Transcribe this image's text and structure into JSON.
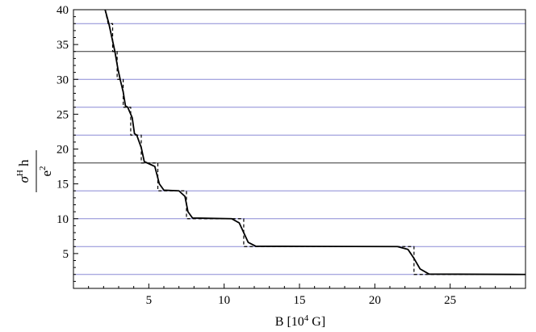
{
  "chart_data": {
    "type": "line",
    "title": "",
    "xlabel": {
      "prefix": "B [10",
      "exponent": "4",
      "suffix": " G]"
    },
    "ylabel": {
      "numerator_main": "σ",
      "numerator_sup": "H",
      "numerator_tail": " h",
      "denominator_main": "e",
      "denominator_sup": "2"
    },
    "xlim": [
      0,
      30
    ],
    "ylim": [
      0,
      40
    ],
    "x_ticks": [
      5,
      10,
      15,
      20,
      25
    ],
    "y_ticks": [
      5,
      10,
      15,
      20,
      25,
      30,
      35,
      40
    ],
    "grid": false,
    "reference_lines": {
      "black": [
        18,
        34
      ],
      "blue": [
        2,
        6,
        10,
        14,
        22,
        26,
        30,
        38
      ]
    },
    "colors": {
      "smooth": "#000000",
      "step": "#000000",
      "black_lines": "#333333",
      "blue_lines": "#8a8ad6",
      "frame": "#000000"
    },
    "series": [
      {
        "style": "step-dashed",
        "points": [
          [
            2.1,
            40
          ],
          [
            2.3,
            38
          ],
          [
            2.6,
            38
          ],
          [
            2.6,
            34
          ],
          [
            2.9,
            34
          ],
          [
            2.9,
            30
          ],
          [
            3.3,
            30
          ],
          [
            3.3,
            26
          ],
          [
            3.8,
            26
          ],
          [
            3.8,
            22
          ],
          [
            4.5,
            22
          ],
          [
            4.5,
            18
          ],
          [
            5.6,
            18
          ],
          [
            5.6,
            14
          ],
          [
            7.5,
            14
          ],
          [
            7.5,
            10
          ],
          [
            11.3,
            10
          ],
          [
            11.3,
            6
          ],
          [
            22.6,
            6
          ],
          [
            22.6,
            2
          ],
          [
            30,
            2
          ]
        ]
      },
      {
        "style": "smooth-solid",
        "points": [
          [
            2.1,
            40
          ],
          [
            2.35,
            38
          ],
          [
            2.55,
            36
          ],
          [
            2.75,
            34
          ],
          [
            2.95,
            31.5
          ],
          [
            3.1,
            30
          ],
          [
            3.3,
            28.2
          ],
          [
            3.45,
            26.2
          ],
          [
            3.6,
            26
          ],
          [
            3.9,
            24.5
          ],
          [
            4.05,
            22.2
          ],
          [
            4.2,
            22
          ],
          [
            4.5,
            20.2
          ],
          [
            4.7,
            18.2
          ],
          [
            4.9,
            18
          ],
          [
            5.4,
            17.5
          ],
          [
            5.7,
            15
          ],
          [
            6.0,
            14.1
          ],
          [
            7.0,
            14
          ],
          [
            7.4,
            13.2
          ],
          [
            7.6,
            11
          ],
          [
            7.9,
            10.1
          ],
          [
            10.5,
            10
          ],
          [
            11.0,
            9.4
          ],
          [
            11.3,
            8
          ],
          [
            11.6,
            6.6
          ],
          [
            12.1,
            6.05
          ],
          [
            21.5,
            6
          ],
          [
            22.2,
            5.6
          ],
          [
            22.6,
            4.3
          ],
          [
            23.0,
            2.8
          ],
          [
            23.6,
            2.05
          ],
          [
            30,
            2
          ]
        ]
      }
    ]
  }
}
